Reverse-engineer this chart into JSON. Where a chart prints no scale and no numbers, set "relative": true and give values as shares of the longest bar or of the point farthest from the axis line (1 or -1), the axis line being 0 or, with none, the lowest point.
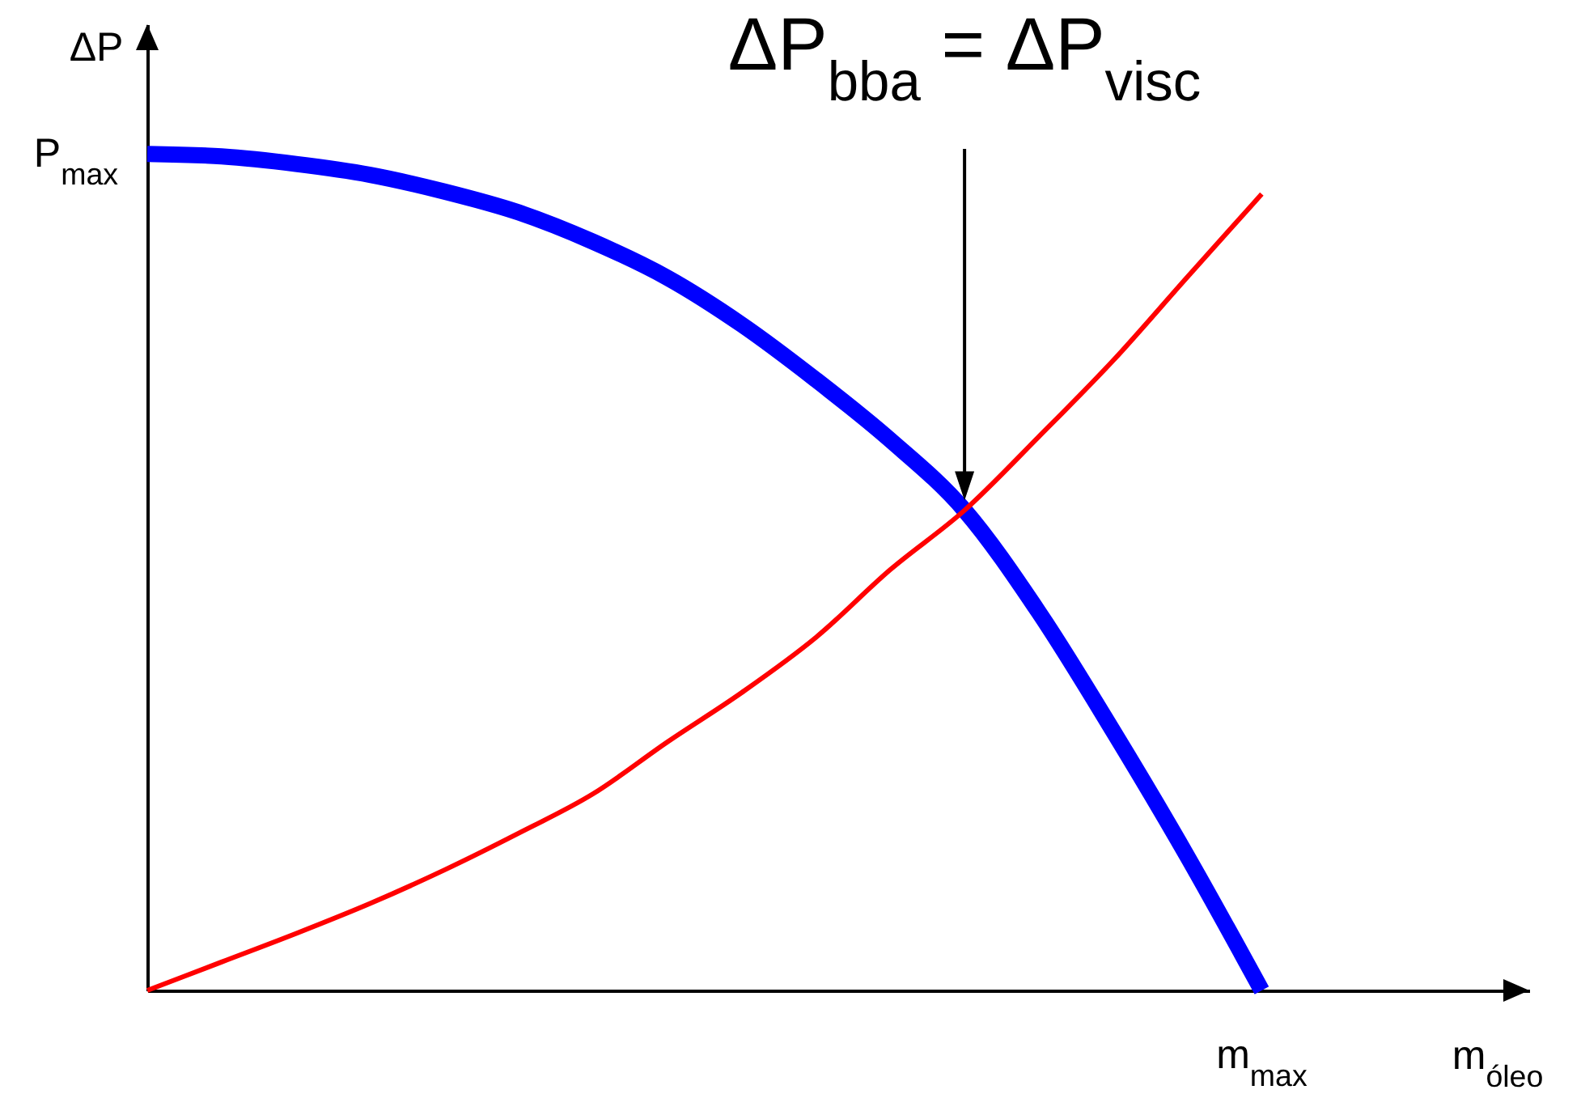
{
  "chart_data": {
    "type": "line",
    "relative": true,
    "xlabel": "m$_{óleo}$",
    "ylabel": "ΔP",
    "categories": [
      null,
      null,
      null,
      null,
      null,
      null,
      null,
      null,
      null,
      null,
      null,
      null,
      null,
      null,
      null,
      null
    ],
    "series": [
      {
        "color": "#0000ff",
        "values": [
          1,
          0.997,
          0.988,
          0.975,
          0.955,
          0.93,
          0.895,
          0.852,
          0.796,
          0.73,
          0.658,
          0.574,
          0.452,
          0.31,
          0.16,
          0
        ]
      },
      {
        "color": "#ff0000",
        "values": [
          0,
          0.034,
          0.068,
          0.104,
          0.144,
          0.188,
          0.235,
          0.297,
          0.356,
          0.422,
          0.503,
          0.574,
          0.662,
          0.753,
          0.853,
          0.952
        ]
      }
    ],
    "annotations": [
      "P$_{max}$",
      "m$_{max}$",
      "ΔP$_{bba}$ = ΔP$_{visc}$"
    ]
  }
}
